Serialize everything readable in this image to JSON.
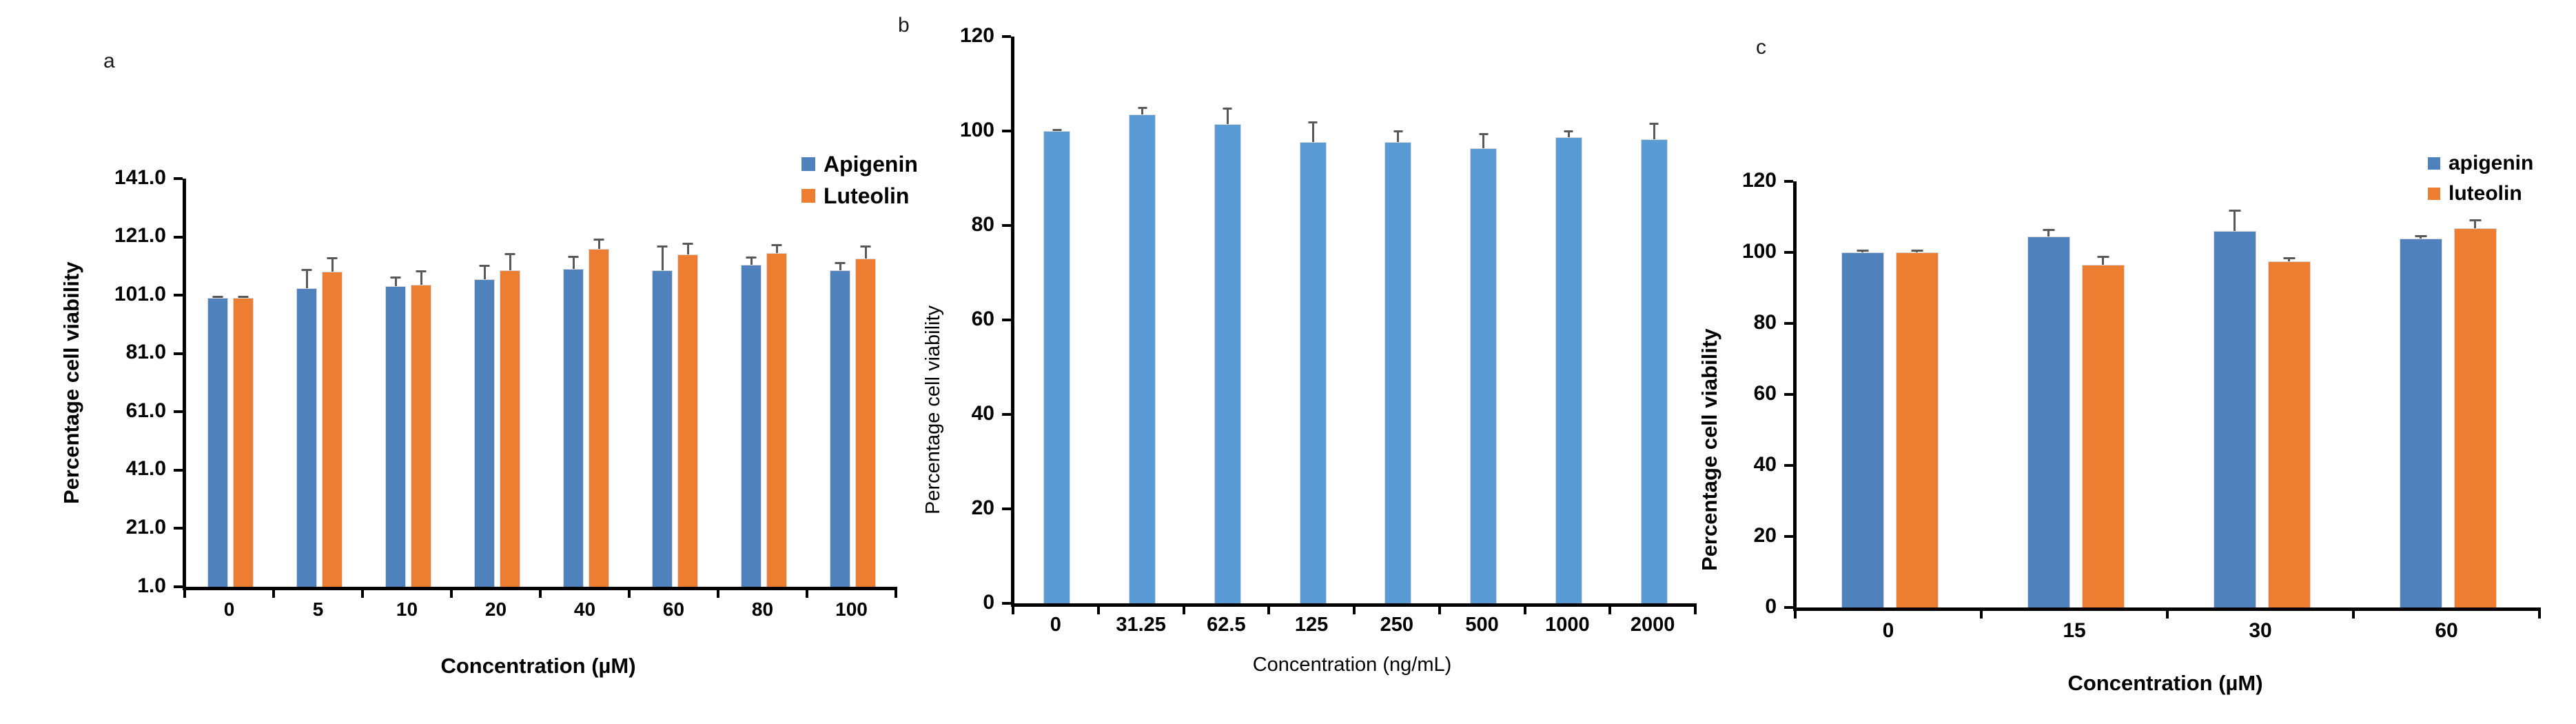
{
  "page": {
    "background": "#ffffff",
    "error_bar_color": "#595959"
  },
  "chart_data": [
    {
      "id": "a",
      "type": "bar",
      "panel_label": "a",
      "title": "",
      "xlabel": "Concentration (µM)",
      "ylabel": "Percentage cell viability",
      "categories": [
        "0",
        "5",
        "10",
        "20",
        "40",
        "60",
        "80",
        "100"
      ],
      "series": [
        {
          "name": "Apigenin",
          "color": "#4F81BD",
          "values": [
            100,
            103.5,
            104,
            106.5,
            110,
            109.5,
            111.5,
            109.5
          ],
          "errors": [
            0.8,
            6.5,
            3.5,
            5,
            4.5,
            8.5,
            2.8,
            3
          ]
        },
        {
          "name": "Luteolin",
          "color": "#ED7D31",
          "values": [
            100,
            109,
            104.5,
            109.5,
            117,
            115,
            115.5,
            113.5
          ],
          "errors": [
            0.8,
            5,
            5,
            6,
            3.5,
            4,
            3,
            4.5
          ]
        }
      ],
      "ylim": [
        1,
        141
      ],
      "yticks": [
        "1.0",
        "21.0",
        "41.0",
        "61.0",
        "81.0",
        "101.0",
        "121.0",
        "141.0"
      ],
      "legend_position": "top-right",
      "grid": false
    },
    {
      "id": "b",
      "type": "bar",
      "panel_label": "b",
      "title": "",
      "xlabel": "Concentration (ng/mL)",
      "ylabel": "Percentage cell viability",
      "categories": [
        "0",
        "31.25",
        "62.5",
        "125",
        "250",
        "500",
        "1000",
        "2000"
      ],
      "series": [
        {
          "name": "",
          "color": "#5B9BD5",
          "values": [
            100,
            103.5,
            101.5,
            97.7,
            97.7,
            96.3,
            98.7,
            98.2
          ],
          "errors": [
            0.5,
            1.6,
            3.5,
            4.3,
            2.4,
            3.2,
            1.5,
            3.6
          ]
        }
      ],
      "ylim": [
        0,
        120
      ],
      "yticks": [
        "0",
        "20",
        "40",
        "60",
        "80",
        "100",
        "120"
      ],
      "legend_position": "none",
      "grid": false
    },
    {
      "id": "c",
      "type": "bar",
      "panel_label": "c",
      "title": "",
      "xlabel": "Concentration (µM)",
      "ylabel": "Percentage cell viability",
      "categories": [
        "0",
        "15",
        "30",
        "60"
      ],
      "series": [
        {
          "name": "apigenin",
          "color": "#4F81BD",
          "values": [
            100,
            104.5,
            106,
            103.8
          ],
          "errors": [
            0.7,
            2.2,
            6,
            1
          ]
        },
        {
          "name": "luteolin",
          "color": "#ED7D31",
          "values": [
            100,
            96.5,
            97.5,
            106.8
          ],
          "errors": [
            0.7,
            2.5,
            1.2,
            2.5
          ]
        }
      ],
      "ylim": [
        0,
        120
      ],
      "yticks": [
        "0",
        "20",
        "40",
        "60",
        "80",
        "100",
        "120"
      ],
      "legend_position": "top-right",
      "grid": false
    }
  ]
}
